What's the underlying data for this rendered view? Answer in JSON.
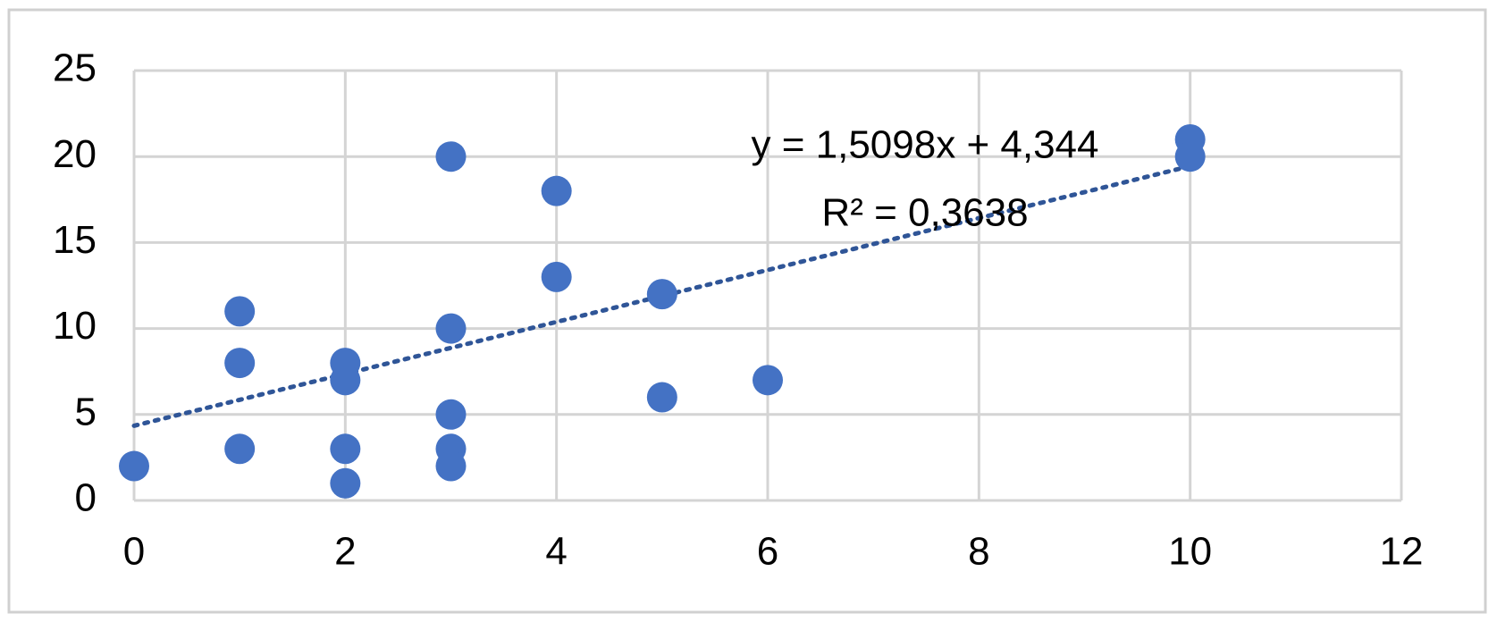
{
  "chart_data": {
    "type": "scatter",
    "x": [
      0,
      1,
      1,
      1,
      2,
      2,
      2,
      2,
      3,
      3,
      3,
      3,
      3,
      4,
      4,
      5,
      5,
      6,
      10,
      10
    ],
    "values": [
      2,
      11,
      8,
      3,
      8,
      7,
      3,
      1,
      20,
      10,
      5,
      3,
      2,
      18,
      13,
      12,
      6,
      7,
      21,
      20
    ],
    "color": "#4472c4",
    "xlim": [
      0,
      12
    ],
    "xticks": [
      0,
      2,
      4,
      6,
      8,
      10,
      12
    ],
    "ylim": [
      0,
      25
    ],
    "yticks": [
      0,
      5,
      10,
      15,
      20,
      25
    ],
    "grid": true,
    "trendline": {
      "slope": 1.5098,
      "intercept": 4.344,
      "equation": "y = 1,5098x + 4,344",
      "r_squared": "R² = 0,3638",
      "color": "#2f5597"
    }
  }
}
